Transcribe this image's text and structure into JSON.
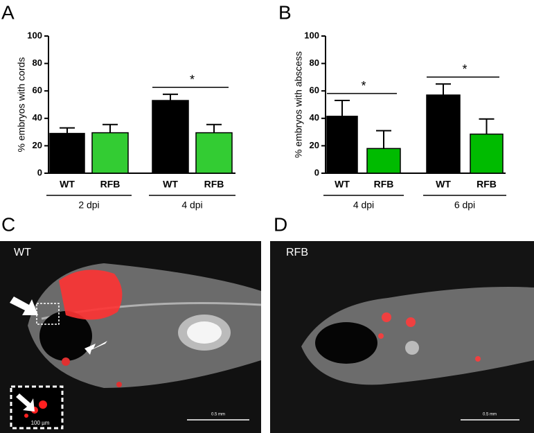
{
  "panels": [
    "A",
    "B",
    "C",
    "D"
  ],
  "chart_data": [
    {
      "type": "bar",
      "ylabel": "% embryos with cords",
      "categories": [
        "WT",
        "RFB",
        "WT",
        "RFB"
      ],
      "groups": [
        "2 dpi",
        "4 dpi"
      ],
      "values": [
        29,
        29.5,
        53,
        29.5
      ],
      "errors": [
        4,
        6,
        4.5,
        6
      ],
      "colors": [
        "#000000",
        "#33cc33",
        "#000000",
        "#33cc33"
      ],
      "ylim": [
        0,
        100
      ],
      "yticks": [
        0,
        20,
        40,
        60,
        80,
        100
      ],
      "annotations": [
        {
          "text": "*",
          "group": 1
        }
      ]
    },
    {
      "type": "bar",
      "ylabel": "% embryos with abscess",
      "categories": [
        "WT",
        "RFB",
        "WT",
        "RFB"
      ],
      "groups": [
        "4 dpi",
        "6 dpi"
      ],
      "values": [
        41.5,
        18,
        57,
        28.5
      ],
      "errors": [
        11.5,
        13,
        8,
        11
      ],
      "colors": [
        "#000000",
        "#00bb00",
        "#000000",
        "#00bb00"
      ],
      "ylim": [
        0,
        100
      ],
      "yticks": [
        0,
        20,
        40,
        60,
        80,
        100
      ],
      "annotations": [
        {
          "text": "*",
          "group": 0
        },
        {
          "text": "*",
          "group": 1
        }
      ]
    }
  ],
  "images": [
    {
      "label": "WT",
      "scale": "0.5 mm",
      "inset_scale": "100 µm"
    },
    {
      "label": "RFB",
      "scale": "0.5 mm"
    }
  ]
}
